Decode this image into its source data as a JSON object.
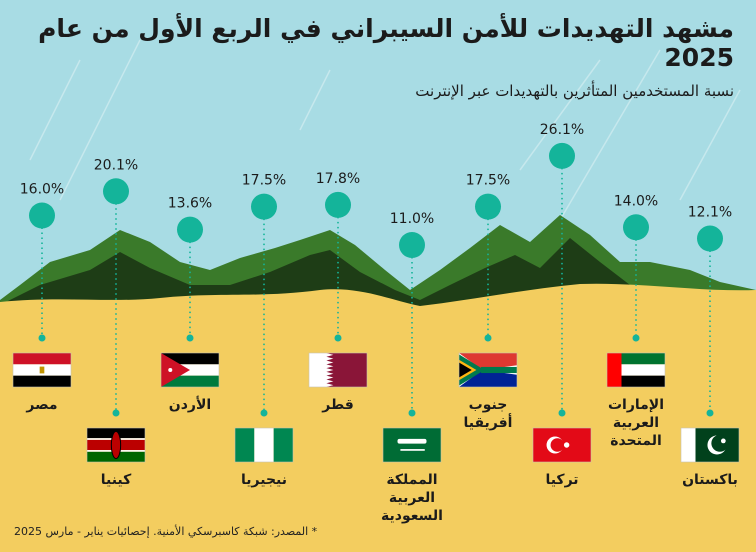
{
  "title": "مشهد التهديدات للأمن السيبراني في الربع الأول من عام 2025",
  "subtitle": "نسبة المستخدمين المتأثرين بالتهديدات عبر الإنترنت",
  "footer": "* المصدر: شبكة كاسبرسكي الأمنية. إحصائيات يناير - مارس 2025",
  "colors": {
    "sky": "#a8dce4",
    "sand": "#f3cd5f",
    "marker": "#14b49a",
    "mountain_light": "#3a7a2a",
    "mountain_dark": "#1e3d16"
  },
  "chart_data": {
    "type": "scatter",
    "unit": "%",
    "ylim": [
      0,
      30
    ],
    "title": "مشهد التهديدات للأمن السيبراني في الربع الأول من عام 2025",
    "subtitle": "نسبة المستخدمين المتأثرين بالتهديدات عبر الإنترنت",
    "categories": [
      {
        "name": "مصر",
        "value": 16.0,
        "label": "16.0%",
        "flag": "egypt"
      },
      {
        "name": "كينيا",
        "value": 20.1,
        "label": "20.1%",
        "flag": "kenya"
      },
      {
        "name": "الأردن",
        "value": 13.6,
        "label": "13.6%",
        "flag": "jordan"
      },
      {
        "name": "نيجيريا",
        "value": 17.5,
        "label": "17.5%",
        "flag": "nigeria"
      },
      {
        "name": "قطر",
        "value": 17.8,
        "label": "17.8%",
        "flag": "qatar"
      },
      {
        "name": "المملكة العربية السعودية",
        "value": 11.0,
        "label": "11.0%",
        "flag": "saudi"
      },
      {
        "name": "جنوب أفريقيا",
        "value": 17.5,
        "label": "17.5%",
        "flag": "south-africa"
      },
      {
        "name": "تركيا",
        "value": 26.1,
        "label": "26.1%",
        "flag": "turkey"
      },
      {
        "name": "الإمارات العربية المتحدة",
        "value": 14.0,
        "label": "14.0%",
        "flag": "uae"
      },
      {
        "name": "باكستان",
        "value": 12.1,
        "label": "12.1%",
        "flag": "pakistan"
      }
    ]
  }
}
